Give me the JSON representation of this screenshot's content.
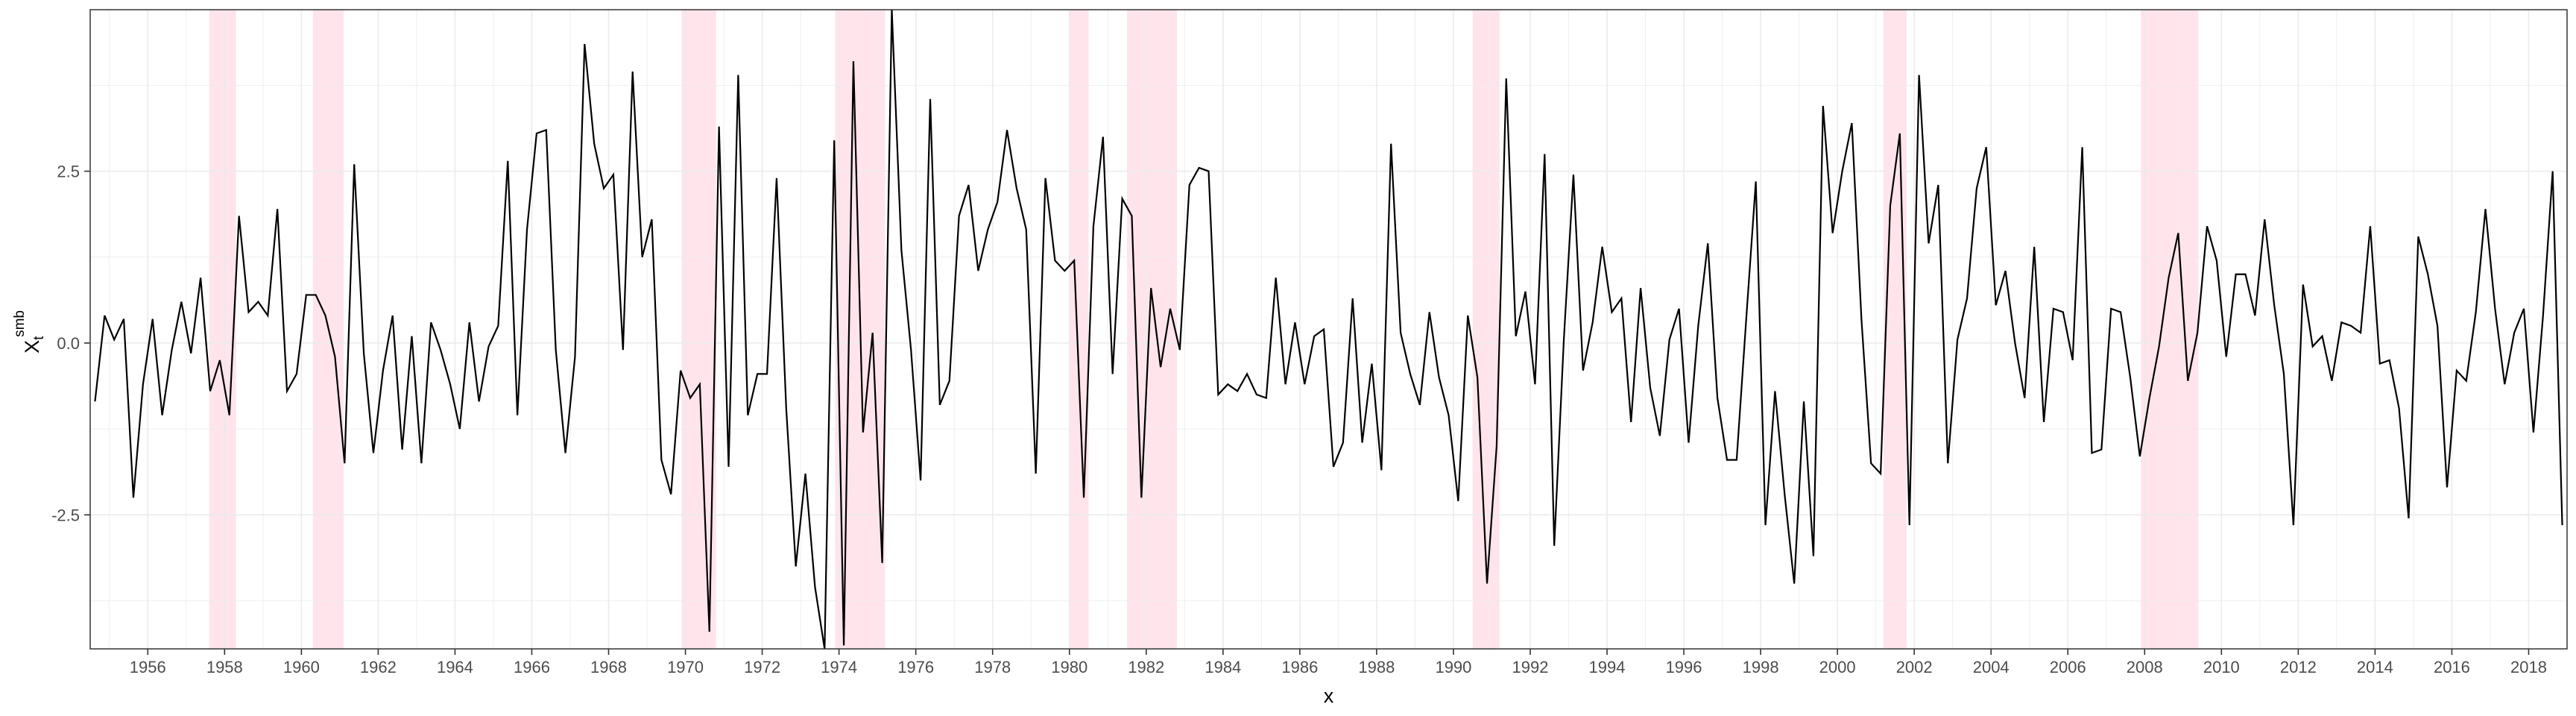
{
  "chart_data": {
    "type": "line",
    "xlabel": "x",
    "ylabel": {
      "base": "X",
      "sup": "smb",
      "sub": "t"
    },
    "xlim": [
      1954.5,
      2019.0
    ],
    "ylim": [
      -4.45,
      4.85
    ],
    "x_ticks": [
      1956,
      1958,
      1960,
      1962,
      1964,
      1966,
      1968,
      1970,
      1972,
      1974,
      1976,
      1978,
      1980,
      1982,
      1984,
      1986,
      1988,
      1990,
      1992,
      1994,
      1996,
      1998,
      2000,
      2002,
      2004,
      2006,
      2008,
      2010,
      2012,
      2014,
      2016,
      2018
    ],
    "x_tick_labels": [
      "1956",
      "1958",
      "1960",
      "1962",
      "1964",
      "1966",
      "1968",
      "1970",
      "1972",
      "1974",
      "1976",
      "1978",
      "1980",
      "1982",
      "1984",
      "1986",
      "1988",
      "1990",
      "1992",
      "1994",
      "1996",
      "1998",
      "2000",
      "2002",
      "2004",
      "2006",
      "2008",
      "2010",
      "2012",
      "2014",
      "2016",
      "2018"
    ],
    "y_ticks": [
      -2.5,
      0.0,
      2.5
    ],
    "y_tick_labels": [
      "-2.5",
      "0.0",
      "2.5"
    ],
    "grid": true,
    "recession_shading": [
      [
        1957.6,
        1958.3
      ],
      [
        1960.3,
        1961.1
      ],
      [
        1969.9,
        1970.8
      ],
      [
        1973.9,
        1975.2
      ],
      [
        1980.0,
        1980.5
      ],
      [
        1981.5,
        1982.8
      ],
      [
        1990.5,
        1991.2
      ],
      [
        2001.2,
        2001.8
      ],
      [
        2007.9,
        2009.4
      ]
    ],
    "x_start": 1954.625,
    "x_step": 0.25,
    "series": [
      {
        "values": [
          -0.85,
          0.4,
          0.05,
          0.35,
          -2.25,
          -0.6,
          0.35,
          -1.05,
          -0.1,
          0.6,
          -0.15,
          0.95,
          -0.7,
          -0.25,
          -1.05,
          1.85,
          0.45,
          0.6,
          0.4,
          1.95,
          -0.7,
          -0.45,
          0.7,
          0.7,
          0.4,
          -0.2,
          -1.75,
          2.6,
          -0.15,
          -1.6,
          -0.4,
          0.4,
          -1.55,
          0.1,
          -1.75,
          0.3,
          -0.1,
          -0.6,
          -1.25,
          0.3,
          -0.85,
          -0.05,
          0.25,
          2.65,
          -1.05,
          1.65,
          3.05,
          3.1,
          -0.1,
          -1.6,
          -0.2,
          4.35,
          2.9,
          2.25,
          2.45,
          -0.1,
          3.95,
          1.25,
          1.8,
          -1.7,
          -2.2,
          -0.4,
          -0.8,
          -0.6,
          -4.2,
          3.15,
          -1.8,
          3.9,
          -1.05,
          -0.45,
          -0.45,
          2.4,
          -0.95,
          -3.25,
          -1.9,
          -3.55,
          -4.45,
          2.95,
          -4.4,
          4.1,
          -1.3,
          0.15,
          -3.2,
          4.85,
          1.35,
          -0.1,
          -2.0,
          3.55,
          -0.9,
          -0.55,
          1.85,
          2.3,
          1.05,
          1.65,
          2.05,
          3.1,
          2.25,
          1.65,
          -1.9,
          2.4,
          1.2,
          1.05,
          1.2,
          -2.25,
          1.7,
          3.0,
          -0.45,
          2.1,
          1.85,
          -2.25,
          0.8,
          -0.35,
          0.5,
          -0.1,
          2.3,
          2.55,
          2.5,
          -0.75,
          -0.6,
          -0.7,
          -0.45,
          -0.75,
          -0.8,
          0.95,
          -0.6,
          0.3,
          -0.6,
          0.1,
          0.2,
          -1.8,
          -1.45,
          0.65,
          -1.45,
          -0.3,
          -1.85,
          2.9,
          0.15,
          -0.45,
          -0.9,
          0.45,
          -0.5,
          -1.05,
          -2.3,
          0.4,
          -0.5,
          -3.5,
          -1.5,
          3.85,
          0.1,
          0.75,
          -0.6,
          2.75,
          -2.95,
          0.05,
          2.45,
          -0.4,
          0.3,
          1.4,
          0.45,
          0.65,
          -1.15,
          0.8,
          -0.65,
          -1.35,
          0.05,
          0.5,
          -1.45,
          0.25,
          1.45,
          -0.8,
          -1.7,
          -1.7,
          0.35,
          2.35,
          -2.65,
          -0.7,
          -2.2,
          -3.5,
          -0.85,
          -3.1,
          3.45,
          1.6,
          2.5,
          3.2,
          0.35,
          -1.75,
          -1.9,
          2.0,
          3.05,
          -2.65,
          3.9,
          1.45,
          2.3,
          -1.75,
          0.05,
          0.65,
          2.25,
          2.85,
          0.55,
          1.05,
          0.0,
          -0.8,
          1.4,
          -1.15,
          0.5,
          0.45,
          -0.25,
          2.85,
          -1.6,
          -1.55,
          0.5,
          0.45,
          -0.5,
          -1.65,
          -0.8,
          -0.05,
          0.95,
          1.6,
          -0.55,
          0.15,
          1.7,
          1.2,
          -0.2,
          1.0,
          1.0,
          0.4,
          1.8,
          0.55,
          -0.45,
          -2.65,
          0.85,
          -0.05,
          0.1,
          -0.55,
          0.3,
          0.25,
          0.15,
          1.7,
          -0.3,
          -0.25,
          -0.95,
          -2.55,
          1.55,
          1.0,
          0.25,
          -2.1,
          -0.4,
          -0.55,
          0.45,
          1.95,
          0.5,
          -0.6,
          0.15,
          0.5,
          -1.3,
          0.4,
          2.5,
          -2.65
        ]
      }
    ]
  },
  "colors": {
    "line": "#000000",
    "shade": "#ffe4ec",
    "grid": "#ebebeb",
    "panel_border": "#333333"
  }
}
